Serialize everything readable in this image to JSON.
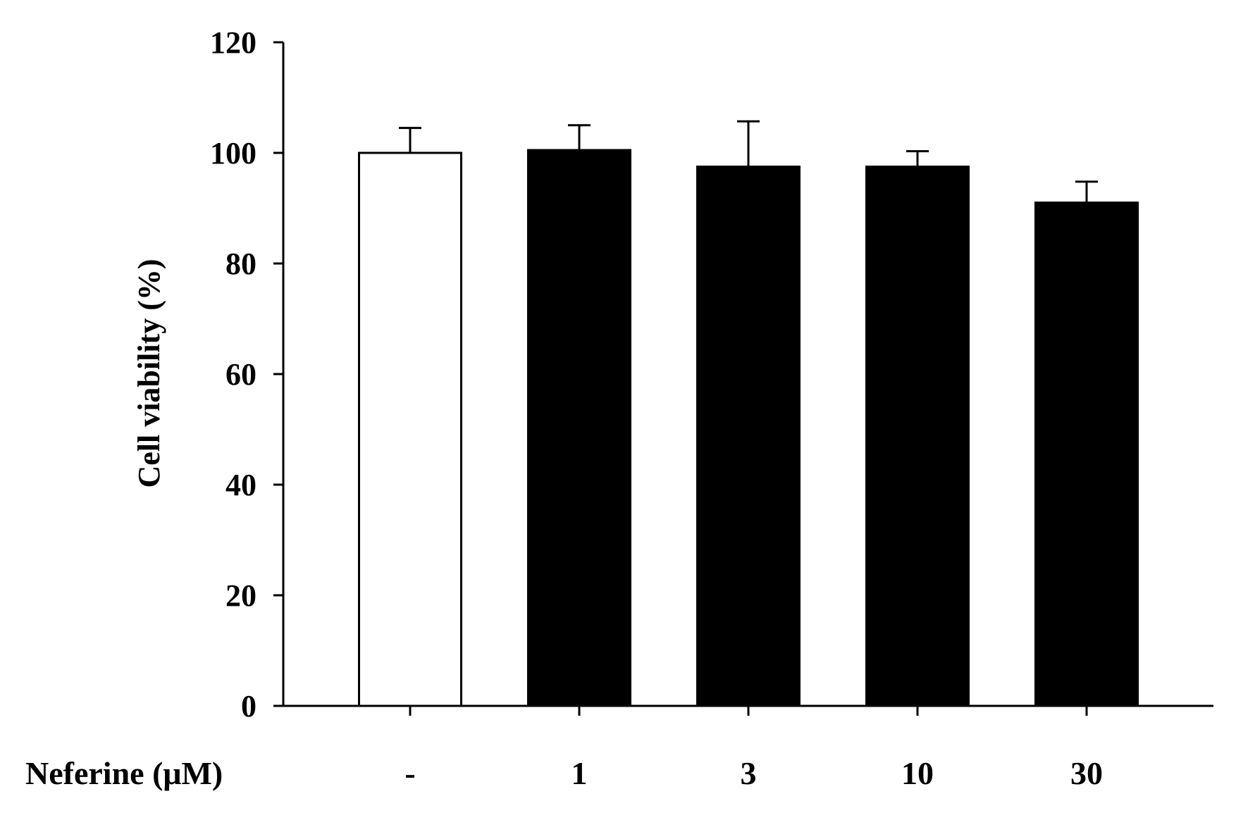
{
  "chart_data": {
    "type": "bar",
    "ylabel": "Cell viability (%)",
    "category_row_label": "Neferine (μM)",
    "categories": [
      "-",
      "1",
      "3",
      "10",
      "30"
    ],
    "values": [
      100,
      100.5,
      97.5,
      97.5,
      91
    ],
    "errors": [
      4.5,
      4.5,
      8.2,
      2.8,
      3.8
    ],
    "bar_fills": [
      "#ffffff",
      "#000000",
      "#000000",
      "#000000",
      "#000000"
    ],
    "ylim": [
      0,
      120
    ],
    "yticks": [
      0,
      20,
      40,
      60,
      80,
      100,
      120
    ],
    "grid": false,
    "legend": false
  }
}
